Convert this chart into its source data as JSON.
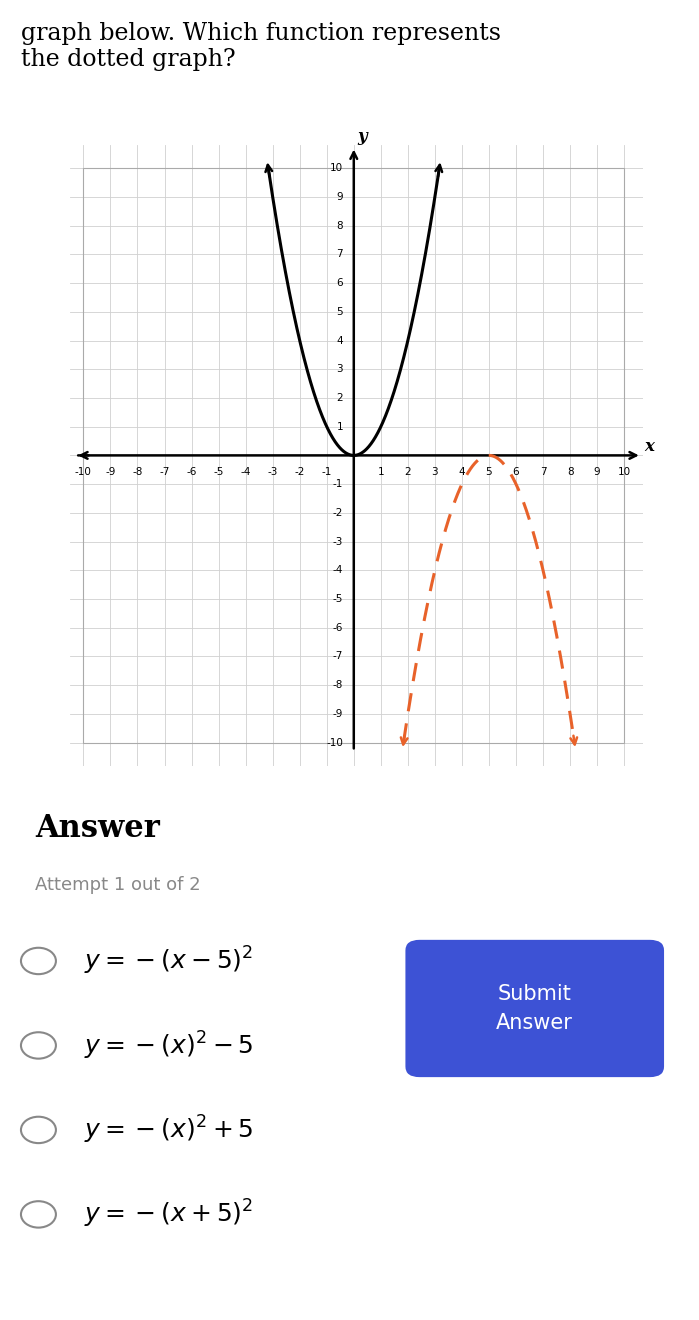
{
  "xmin": -10,
  "xmax": 10,
  "ymin": -10,
  "ymax": 10,
  "solid_color": "#000000",
  "dashed_color": "#E8622A",
  "bg_color": "#ffffff",
  "answer_bg": "#f0f2f5",
  "grid_color": "#d0d0d0",
  "answer_title": "Answer",
  "attempt_text": "Attempt 1 out of 2",
  "submit_btn_color": "#3d52d5",
  "submit_btn_text": "Submit\nAnswer",
  "options_latex": [
    "$y = -(x - 5)^2$",
    "$y = -(x)^2 - 5$",
    "$y = -(x)^2 + 5$",
    "$y = -(x + 5)^2$"
  ]
}
